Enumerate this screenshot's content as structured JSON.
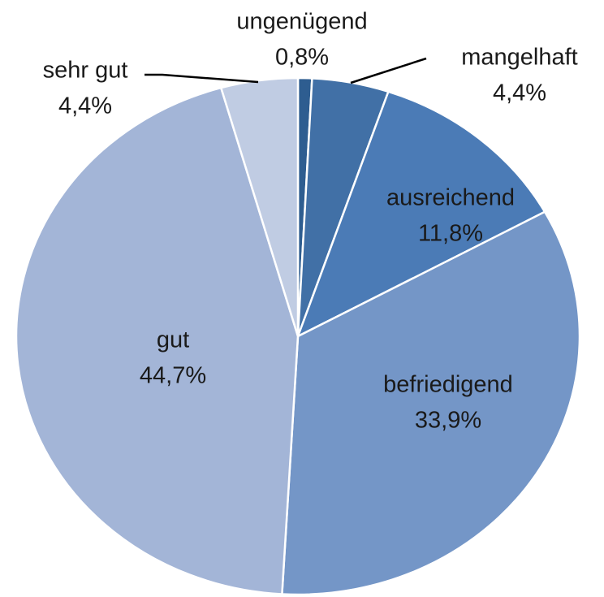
{
  "chart_data": {
    "type": "pie",
    "categories": [
      "ungenügend",
      "mangelhaft",
      "ausreichend",
      "befriedigend",
      "gut",
      "sehr gut"
    ],
    "values": [
      0.8,
      4.4,
      11.8,
      33.9,
      44.7,
      4.4
    ],
    "value_labels": [
      "0,8%",
      "4,4%",
      "11,8%",
      "33,9%",
      "44,7%",
      "4,4%"
    ],
    "colors": [
      "#2e5d90",
      "#4170a6",
      "#4b7bb6",
      "#7496c7",
      "#a3b5d7",
      "#c0cce3"
    ]
  }
}
